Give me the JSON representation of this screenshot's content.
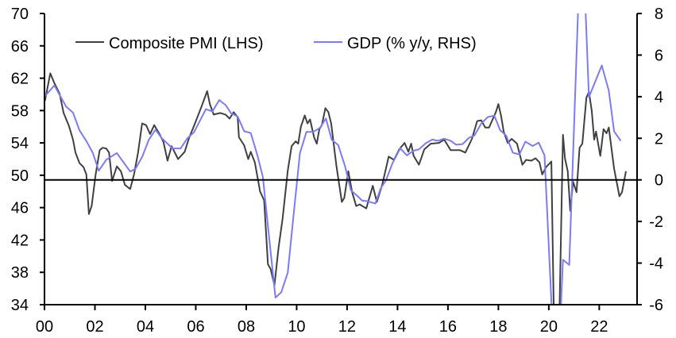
{
  "chart_data": {
    "type": "line",
    "title": "",
    "xlabel": "",
    "ylabel_left": "",
    "ylabel_right": "",
    "x_range": [
      2000,
      2023.5
    ],
    "ylim_left": [
      34,
      70
    ],
    "ylim_right": [
      -6,
      8
    ],
    "left_ticks": [
      "34",
      "38",
      "42",
      "46",
      "50",
      "54",
      "58",
      "62",
      "66",
      "70"
    ],
    "right_ticks": [
      "-6",
      "-4",
      "-2",
      "0",
      "2",
      "4",
      "6",
      "8"
    ],
    "x_ticks": [
      {
        "year": 2000,
        "label": "00"
      },
      {
        "year": 2002,
        "label": "02"
      },
      {
        "year": 2004,
        "label": "04"
      },
      {
        "year": 2006,
        "label": "06"
      },
      {
        "year": 2008,
        "label": "08"
      },
      {
        "year": 2010,
        "label": "10"
      },
      {
        "year": 2012,
        "label": "12"
      },
      {
        "year": 2014,
        "label": "14"
      },
      {
        "year": 2016,
        "label": "16"
      },
      {
        "year": 2018,
        "label": "18"
      },
      {
        "year": 2020,
        "label": "20"
      },
      {
        "year": 2022,
        "label": "22"
      }
    ],
    "reference_line": {
      "axis": "right",
      "value": 0
    },
    "grid": false,
    "legend_placement": "top-left",
    "series": [
      {
        "name": "Composite PMI (LHS)",
        "axis": "left",
        "color": "#404040",
        "points": [
          [
            2000.02,
            59.2
          ],
          [
            2000.23,
            62.6
          ],
          [
            2000.39,
            61.4
          ],
          [
            2000.6,
            60.1
          ],
          [
            2000.76,
            57.7
          ],
          [
            2000.97,
            56.1
          ],
          [
            2001.13,
            54.4
          ],
          [
            2001.23,
            52.8
          ],
          [
            2001.39,
            51.5
          ],
          [
            2001.55,
            51.0
          ],
          [
            2001.66,
            50.1
          ],
          [
            2001.76,
            45.2
          ],
          [
            2001.87,
            46.2
          ],
          [
            2002.03,
            50.1
          ],
          [
            2002.19,
            53.1
          ],
          [
            2002.3,
            53.4
          ],
          [
            2002.45,
            53.3
          ],
          [
            2002.56,
            52.8
          ],
          [
            2002.68,
            49.3
          ],
          [
            2002.87,
            51.1
          ],
          [
            2003.03,
            50.5
          ],
          [
            2003.19,
            48.8
          ],
          [
            2003.4,
            48.3
          ],
          [
            2003.55,
            50.1
          ],
          [
            2003.71,
            52.8
          ],
          [
            2003.87,
            56.4
          ],
          [
            2004.03,
            56.2
          ],
          [
            2004.19,
            55.1
          ],
          [
            2004.35,
            56.2
          ],
          [
            2004.56,
            55.1
          ],
          [
            2004.72,
            54.1
          ],
          [
            2004.88,
            51.8
          ],
          [
            2005.04,
            53.6
          ],
          [
            2005.3,
            52.0
          ],
          [
            2005.56,
            52.9
          ],
          [
            2005.72,
            54.5
          ],
          [
            2005.98,
            56.5
          ],
          [
            2006.24,
            58.6
          ],
          [
            2006.45,
            60.4
          ],
          [
            2006.56,
            58.8
          ],
          [
            2006.71,
            57.5
          ],
          [
            2006.97,
            57.7
          ],
          [
            2007.18,
            57.5
          ],
          [
            2007.34,
            57.0
          ],
          [
            2007.5,
            57.8
          ],
          [
            2007.66,
            57.2
          ],
          [
            2007.71,
            54.7
          ],
          [
            2007.92,
            53.7
          ],
          [
            2008.08,
            52.0
          ],
          [
            2008.18,
            52.9
          ],
          [
            2008.34,
            51.6
          ],
          [
            2008.55,
            48.0
          ],
          [
            2008.71,
            46.9
          ],
          [
            2008.86,
            39.0
          ],
          [
            2008.97,
            38.4
          ],
          [
            2009.12,
            36.4
          ],
          [
            2009.28,
            41.0
          ],
          [
            2009.44,
            44.6
          ],
          [
            2009.65,
            50.6
          ],
          [
            2009.8,
            53.6
          ],
          [
            2009.96,
            54.2
          ],
          [
            2010.06,
            53.9
          ],
          [
            2010.17,
            56.0
          ],
          [
            2010.32,
            57.4
          ],
          [
            2010.43,
            56.4
          ],
          [
            2010.53,
            56.9
          ],
          [
            2010.69,
            54.7
          ],
          [
            2010.8,
            53.9
          ],
          [
            2010.9,
            55.7
          ],
          [
            2011.0,
            56.2
          ],
          [
            2011.14,
            58.3
          ],
          [
            2011.26,
            57.8
          ],
          [
            2011.37,
            56.4
          ],
          [
            2011.58,
            51.1
          ],
          [
            2011.79,
            46.7
          ],
          [
            2011.89,
            47.2
          ],
          [
            2012.05,
            50.5
          ],
          [
            2012.2,
            47.9
          ],
          [
            2012.36,
            46.2
          ],
          [
            2012.5,
            46.4
          ],
          [
            2012.76,
            45.9
          ],
          [
            2013.02,
            48.7
          ],
          [
            2013.18,
            46.7
          ],
          [
            2013.39,
            48.8
          ],
          [
            2013.65,
            52.3
          ],
          [
            2013.86,
            51.9
          ],
          [
            2014.07,
            53.2
          ],
          [
            2014.28,
            54.0
          ],
          [
            2014.43,
            52.9
          ],
          [
            2014.54,
            53.9
          ],
          [
            2014.64,
            52.4
          ],
          [
            2014.85,
            51.3
          ],
          [
            2015.06,
            53.2
          ],
          [
            2015.32,
            53.9
          ],
          [
            2015.64,
            54.0
          ],
          [
            2015.85,
            54.4
          ],
          [
            2016.11,
            53.1
          ],
          [
            2016.48,
            53.1
          ],
          [
            2016.69,
            52.8
          ],
          [
            2016.95,
            54.5
          ],
          [
            2017.16,
            56.7
          ],
          [
            2017.32,
            56.8
          ],
          [
            2017.48,
            55.9
          ],
          [
            2017.63,
            55.9
          ],
          [
            2017.74,
            56.7
          ],
          [
            2017.9,
            57.8
          ],
          [
            2018.0,
            58.8
          ],
          [
            2018.11,
            57.3
          ],
          [
            2018.21,
            55.4
          ],
          [
            2018.37,
            54.0
          ],
          [
            2018.53,
            54.5
          ],
          [
            2018.74,
            53.9
          ],
          [
            2018.95,
            51.3
          ],
          [
            2019.1,
            51.9
          ],
          [
            2019.31,
            51.8
          ],
          [
            2019.47,
            52.1
          ],
          [
            2019.63,
            51.6
          ],
          [
            2019.74,
            50.1
          ],
          [
            2019.89,
            51.0
          ],
          [
            2020.1,
            51.7
          ],
          [
            2020.3,
            13.6
          ],
          [
            2020.56,
            55.0
          ],
          [
            2020.64,
            52.1
          ],
          [
            2020.75,
            50.5
          ],
          [
            2020.85,
            45.6
          ],
          [
            2020.96,
            49.2
          ],
          [
            2021.1,
            47.9
          ],
          [
            2021.22,
            53.4
          ],
          [
            2021.33,
            53.9
          ],
          [
            2021.49,
            59.6
          ],
          [
            2021.59,
            60.3
          ],
          [
            2021.7,
            58.0
          ],
          [
            2021.8,
            54.4
          ],
          [
            2021.87,
            55.4
          ],
          [
            2022.04,
            52.4
          ],
          [
            2022.17,
            55.7
          ],
          [
            2022.29,
            55.2
          ],
          [
            2022.38,
            55.9
          ],
          [
            2022.59,
            50.8
          ],
          [
            2022.8,
            47.4
          ],
          [
            2022.9,
            47.9
          ],
          [
            2023.06,
            50.5
          ]
        ]
      },
      {
        "name": "GDP (% y/y, RHS)",
        "axis": "right",
        "color": "#7b7bfa",
        "points": [
          [
            2000.02,
            4.03
          ],
          [
            2000.39,
            4.54
          ],
          [
            2000.86,
            3.52
          ],
          [
            2001.13,
            3.23
          ],
          [
            2001.39,
            2.38
          ],
          [
            2001.66,
            1.87
          ],
          [
            2001.92,
            1.29
          ],
          [
            2002.15,
            0.44
          ],
          [
            2002.45,
            0.97
          ],
          [
            2002.87,
            1.29
          ],
          [
            2003.4,
            0.4
          ],
          [
            2003.61,
            0.53
          ],
          [
            2003.87,
            1.1
          ],
          [
            2004.14,
            1.93
          ],
          [
            2004.4,
            2.41
          ],
          [
            2004.66,
            1.99
          ],
          [
            2005.08,
            1.51
          ],
          [
            2005.4,
            1.51
          ],
          [
            2005.66,
            1.99
          ],
          [
            2005.93,
            2.29
          ],
          [
            2006.4,
            3.4
          ],
          [
            2006.66,
            3.29
          ],
          [
            2006.93,
            3.84
          ],
          [
            2007.19,
            3.59
          ],
          [
            2007.4,
            3.2
          ],
          [
            2007.66,
            3.05
          ],
          [
            2007.92,
            2.34
          ],
          [
            2008.18,
            2.25
          ],
          [
            2008.45,
            1.16
          ],
          [
            2008.66,
            0.14
          ],
          [
            2008.92,
            -2.92
          ],
          [
            2009.16,
            -5.66
          ],
          [
            2009.39,
            -5.4
          ],
          [
            2009.65,
            -4.45
          ],
          [
            2009.86,
            -1.9
          ],
          [
            2010.13,
            1.29
          ],
          [
            2010.39,
            2.31
          ],
          [
            2010.66,
            2.31
          ],
          [
            2010.92,
            2.5
          ],
          [
            2011.16,
            2.95
          ],
          [
            2011.39,
            1.93
          ],
          [
            2011.65,
            1.67
          ],
          [
            2011.92,
            0.65
          ],
          [
            2012.15,
            -0.5
          ],
          [
            2012.39,
            -0.75
          ],
          [
            2012.6,
            -1.0
          ],
          [
            2012.8,
            -1.02
          ],
          [
            2013.12,
            -1.14
          ],
          [
            2013.33,
            -0.41
          ],
          [
            2013.54,
            -0.03
          ],
          [
            2013.8,
            0.8
          ],
          [
            2014.11,
            1.52
          ],
          [
            2014.37,
            1.18
          ],
          [
            2014.64,
            1.4
          ],
          [
            2014.85,
            1.47
          ],
          [
            2015.11,
            1.75
          ],
          [
            2015.38,
            1.94
          ],
          [
            2015.59,
            1.88
          ],
          [
            2015.85,
            1.98
          ],
          [
            2016.11,
            1.88
          ],
          [
            2016.32,
            1.69
          ],
          [
            2016.58,
            1.72
          ],
          [
            2016.84,
            2.03
          ],
          [
            2017.05,
            2.13
          ],
          [
            2017.32,
            2.71
          ],
          [
            2017.58,
            3.02
          ],
          [
            2017.84,
            3.09
          ],
          [
            2018.07,
            2.39
          ],
          [
            2018.31,
            2.13
          ],
          [
            2018.57,
            1.31
          ],
          [
            2018.83,
            1.22
          ],
          [
            2019.07,
            1.84
          ],
          [
            2019.36,
            1.63
          ],
          [
            2019.6,
            1.79
          ],
          [
            2019.83,
            1.18
          ],
          [
            2020.3,
            -11
          ],
          [
            2020.56,
            -3.84
          ],
          [
            2020.81,
            -4.09
          ],
          [
            2021.3,
            13
          ],
          [
            2021.59,
            3.98
          ],
          [
            2022.1,
            5.5
          ],
          [
            2022.38,
            4.29
          ],
          [
            2022.59,
            2.33
          ],
          [
            2022.85,
            1.88
          ]
        ]
      }
    ]
  }
}
